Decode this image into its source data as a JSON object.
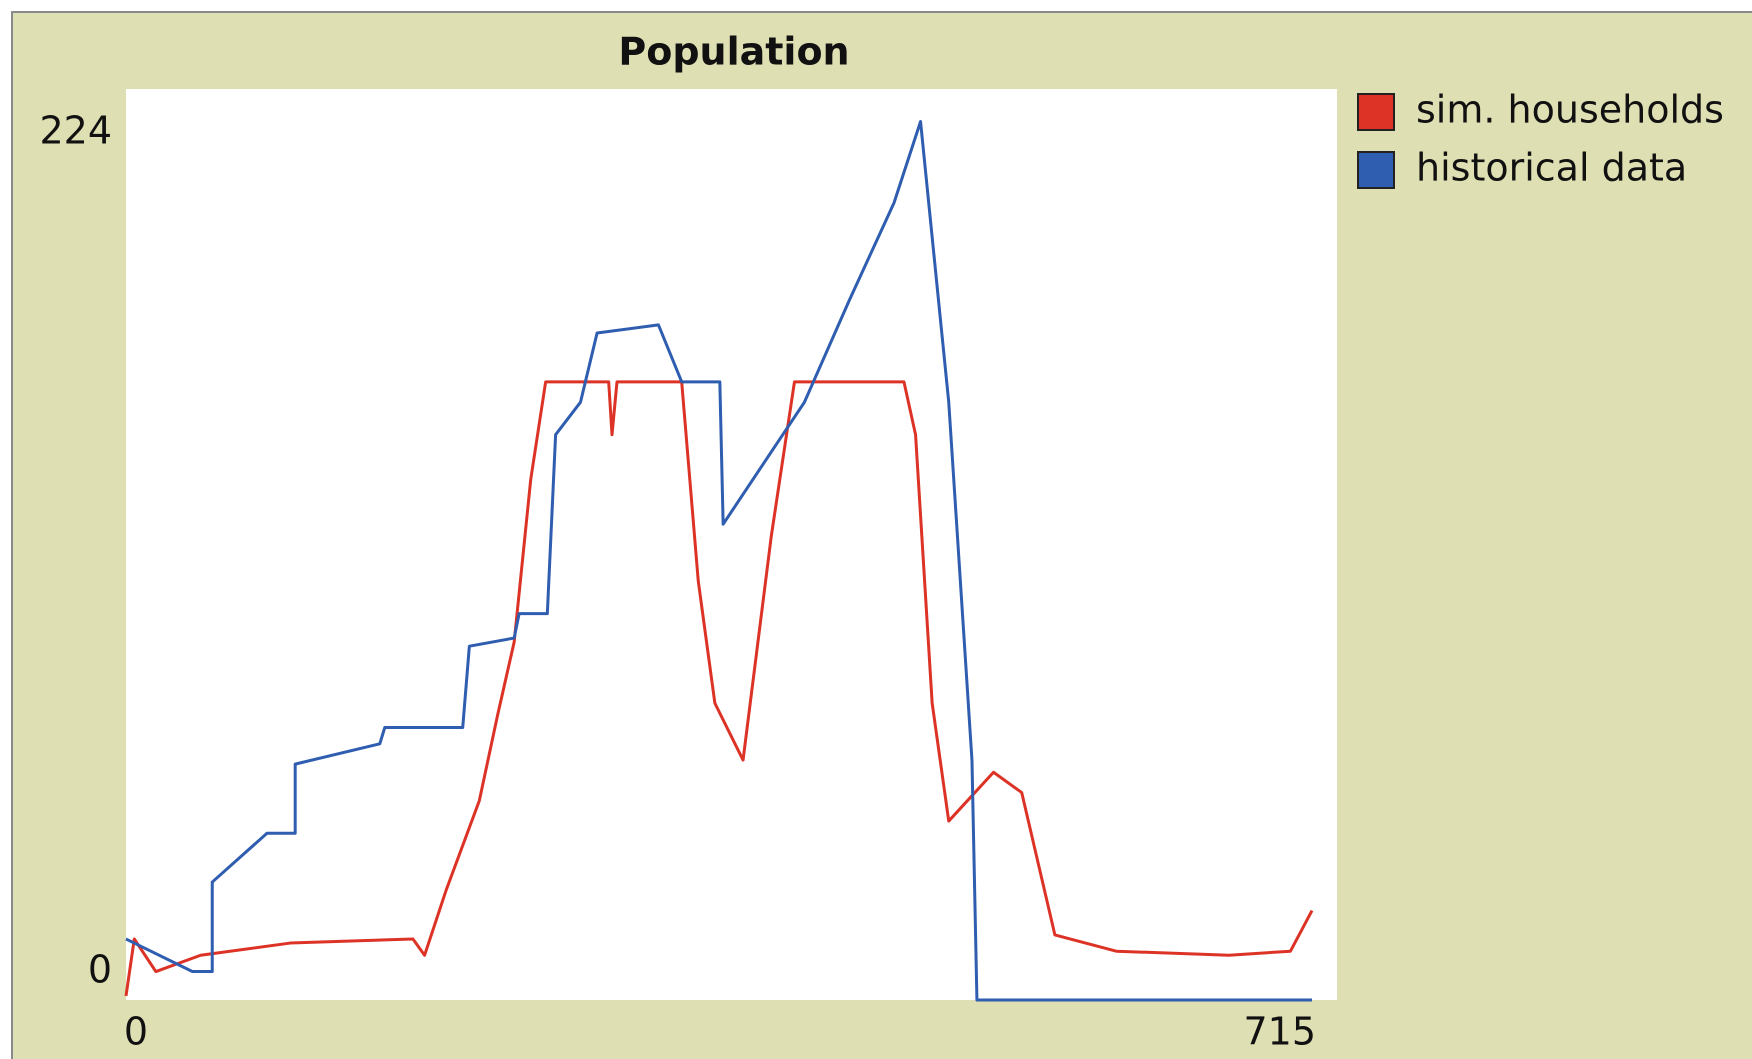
{
  "chart_data": {
    "type": "line",
    "title": "Population",
    "xlim": [
      0,
      715
    ],
    "xticks": [
      0,
      715
    ],
    "ylim": [
      0,
      224
    ],
    "yticks": [
      0,
      224
    ],
    "series": [
      {
        "name": "sim. households",
        "color": "#dc3326",
        "x": [
          0,
          5,
          18,
          45,
          99,
          173,
          180,
          193,
          213,
          224,
          234,
          244,
          253,
          291,
          293,
          296,
          335,
          345,
          355,
          372,
          389,
          403,
          469,
          476,
          486,
          496,
          523,
          540,
          560,
          597,
          665,
          702,
          715
        ],
        "values": [
          1,
          15,
          7,
          11,
          14,
          15,
          11,
          27,
          49,
          70,
          88,
          128,
          152,
          152,
          139,
          152,
          152,
          103,
          73,
          59,
          114,
          152,
          152,
          139,
          73,
          44,
          56,
          51,
          16,
          12,
          11,
          12,
          22
        ]
      },
      {
        "name": "historical data",
        "color": "#2f5db0",
        "x": [
          0,
          40,
          52,
          52,
          85,
          102,
          102,
          153,
          156,
          203,
          207,
          234,
          237,
          254,
          259,
          274,
          284,
          321,
          335,
          358,
          360,
          409,
          436,
          463,
          479,
          496,
          510,
          513,
          715
        ],
        "values": [
          15,
          7,
          7,
          29,
          41,
          41,
          58,
          63,
          67,
          67,
          87,
          89,
          95,
          95,
          139,
          147,
          164,
          166,
          152,
          152,
          117,
          147,
          172,
          196,
          216,
          147,
          59,
          0,
          0
        ]
      }
    ]
  }
}
